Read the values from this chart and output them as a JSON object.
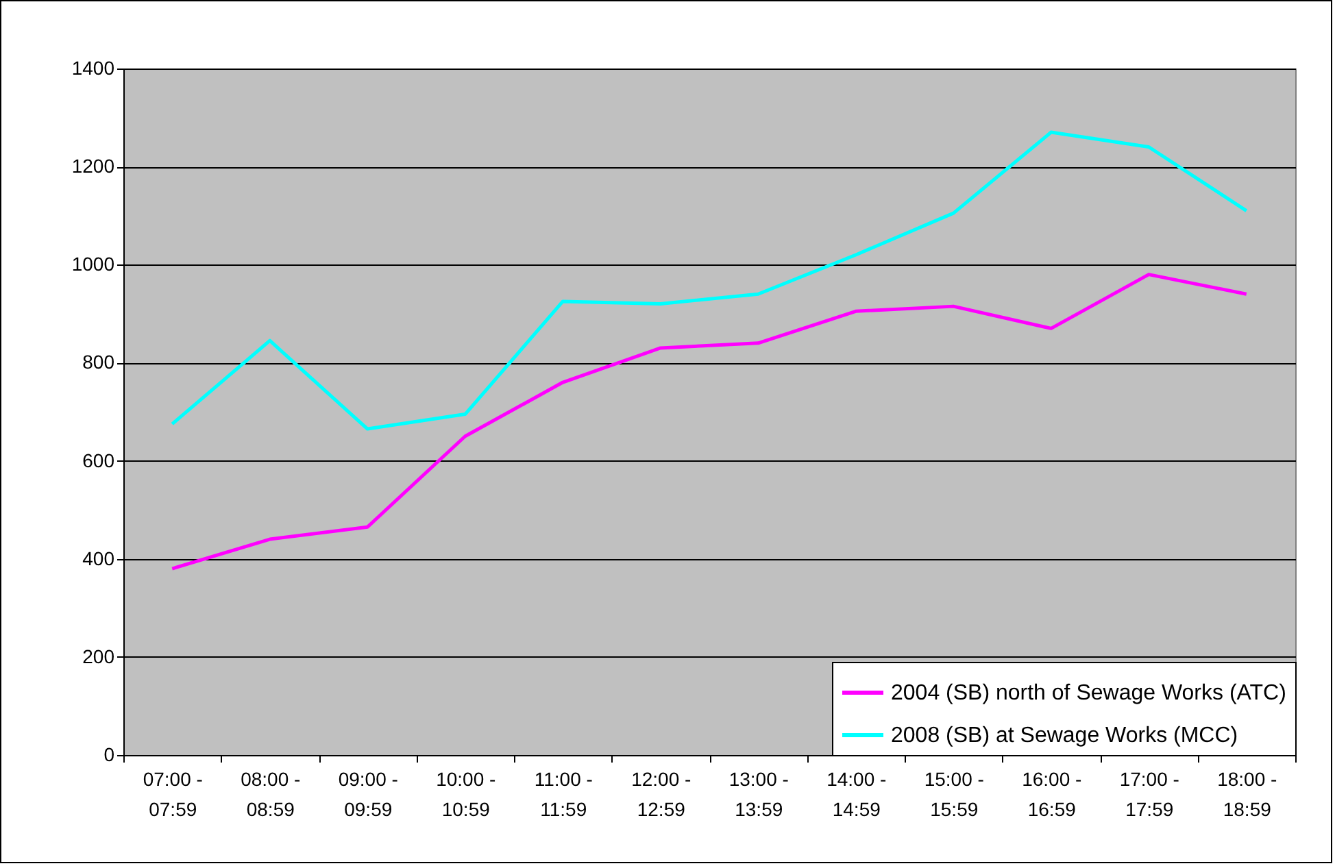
{
  "chart_data": {
    "type": "line",
    "categories": [
      "07:00 - 07:59",
      "08:00 - 08:59",
      "09:00 - 09:59",
      "10:00 - 10:59",
      "11:00 - 11:59",
      "12:00 - 12:59",
      "13:00 - 13:59",
      "14:00 - 14:59",
      "15:00 - 15:59",
      "16:00 - 16:59",
      "17:00 - 17:59",
      "18:00 - 18:59"
    ],
    "series": [
      {
        "name": "2004 (SB) north of Sewage Works (ATC)",
        "color": "#ff00ff",
        "values": [
          380,
          440,
          465,
          650,
          760,
          830,
          840,
          905,
          915,
          870,
          980,
          940
        ]
      },
      {
        "name": "2008 (SB) at Sewage Works (MCC)",
        "color": "#00ffff",
        "values": [
          675,
          845,
          665,
          695,
          925,
          920,
          940,
          1020,
          1105,
          1270,
          1240,
          1110
        ]
      }
    ],
    "ylim": [
      0,
      1400
    ],
    "yticks": [
      0,
      200,
      400,
      600,
      800,
      1000,
      1200,
      1400
    ],
    "grid": "y",
    "legend": "bottom right",
    "marker": "none",
    "line_style": "solid"
  }
}
